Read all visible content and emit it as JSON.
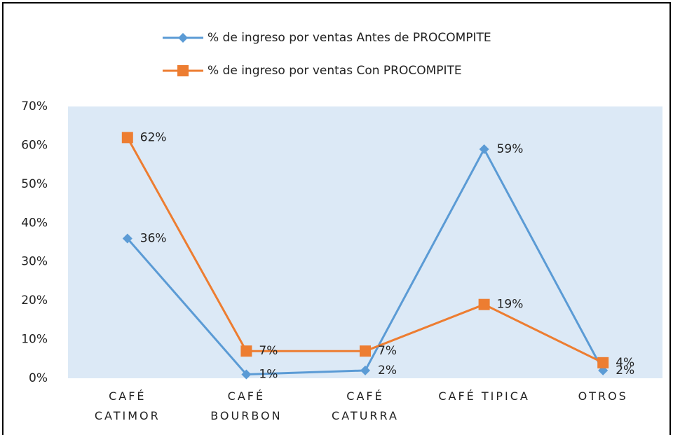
{
  "chart_data": {
    "type": "line",
    "categories": [
      "CAFÉ\nCATIMOR",
      "CAFÉ\nBOURBON",
      "CAFÉ\nCATURRA",
      "CAFÉ TIPICA",
      "OTROS"
    ],
    "series": [
      {
        "name": "% de ingreso por ventas Antes de PROCOMPITE",
        "color": "#5b9bd5",
        "marker": "diamond",
        "values": [
          36,
          1,
          2,
          59,
          2
        ],
        "value_labels": [
          "36%",
          "1%",
          "2%",
          "59%",
          "2%"
        ]
      },
      {
        "name": "% de ingreso por ventas Con PROCOMPITE",
        "color": "#ed7d31",
        "marker": "square",
        "values": [
          62,
          7,
          7,
          19,
          4
        ],
        "value_labels": [
          "62%",
          "7%",
          "7%",
          "19%",
          "4%"
        ]
      }
    ],
    "ylim": [
      0,
      70
    ],
    "yticks": [
      {
        "value": 0,
        "label": "0%"
      },
      {
        "value": 10,
        "label": "10%"
      },
      {
        "value": 20,
        "label": "20%"
      },
      {
        "value": 30,
        "label": "30%"
      },
      {
        "value": 40,
        "label": "40%"
      },
      {
        "value": 50,
        "label": "50%"
      },
      {
        "value": 60,
        "label": "60%"
      },
      {
        "value": 70,
        "label": "70%"
      }
    ],
    "legend": "top",
    "plot_background": "#dce9f6"
  }
}
